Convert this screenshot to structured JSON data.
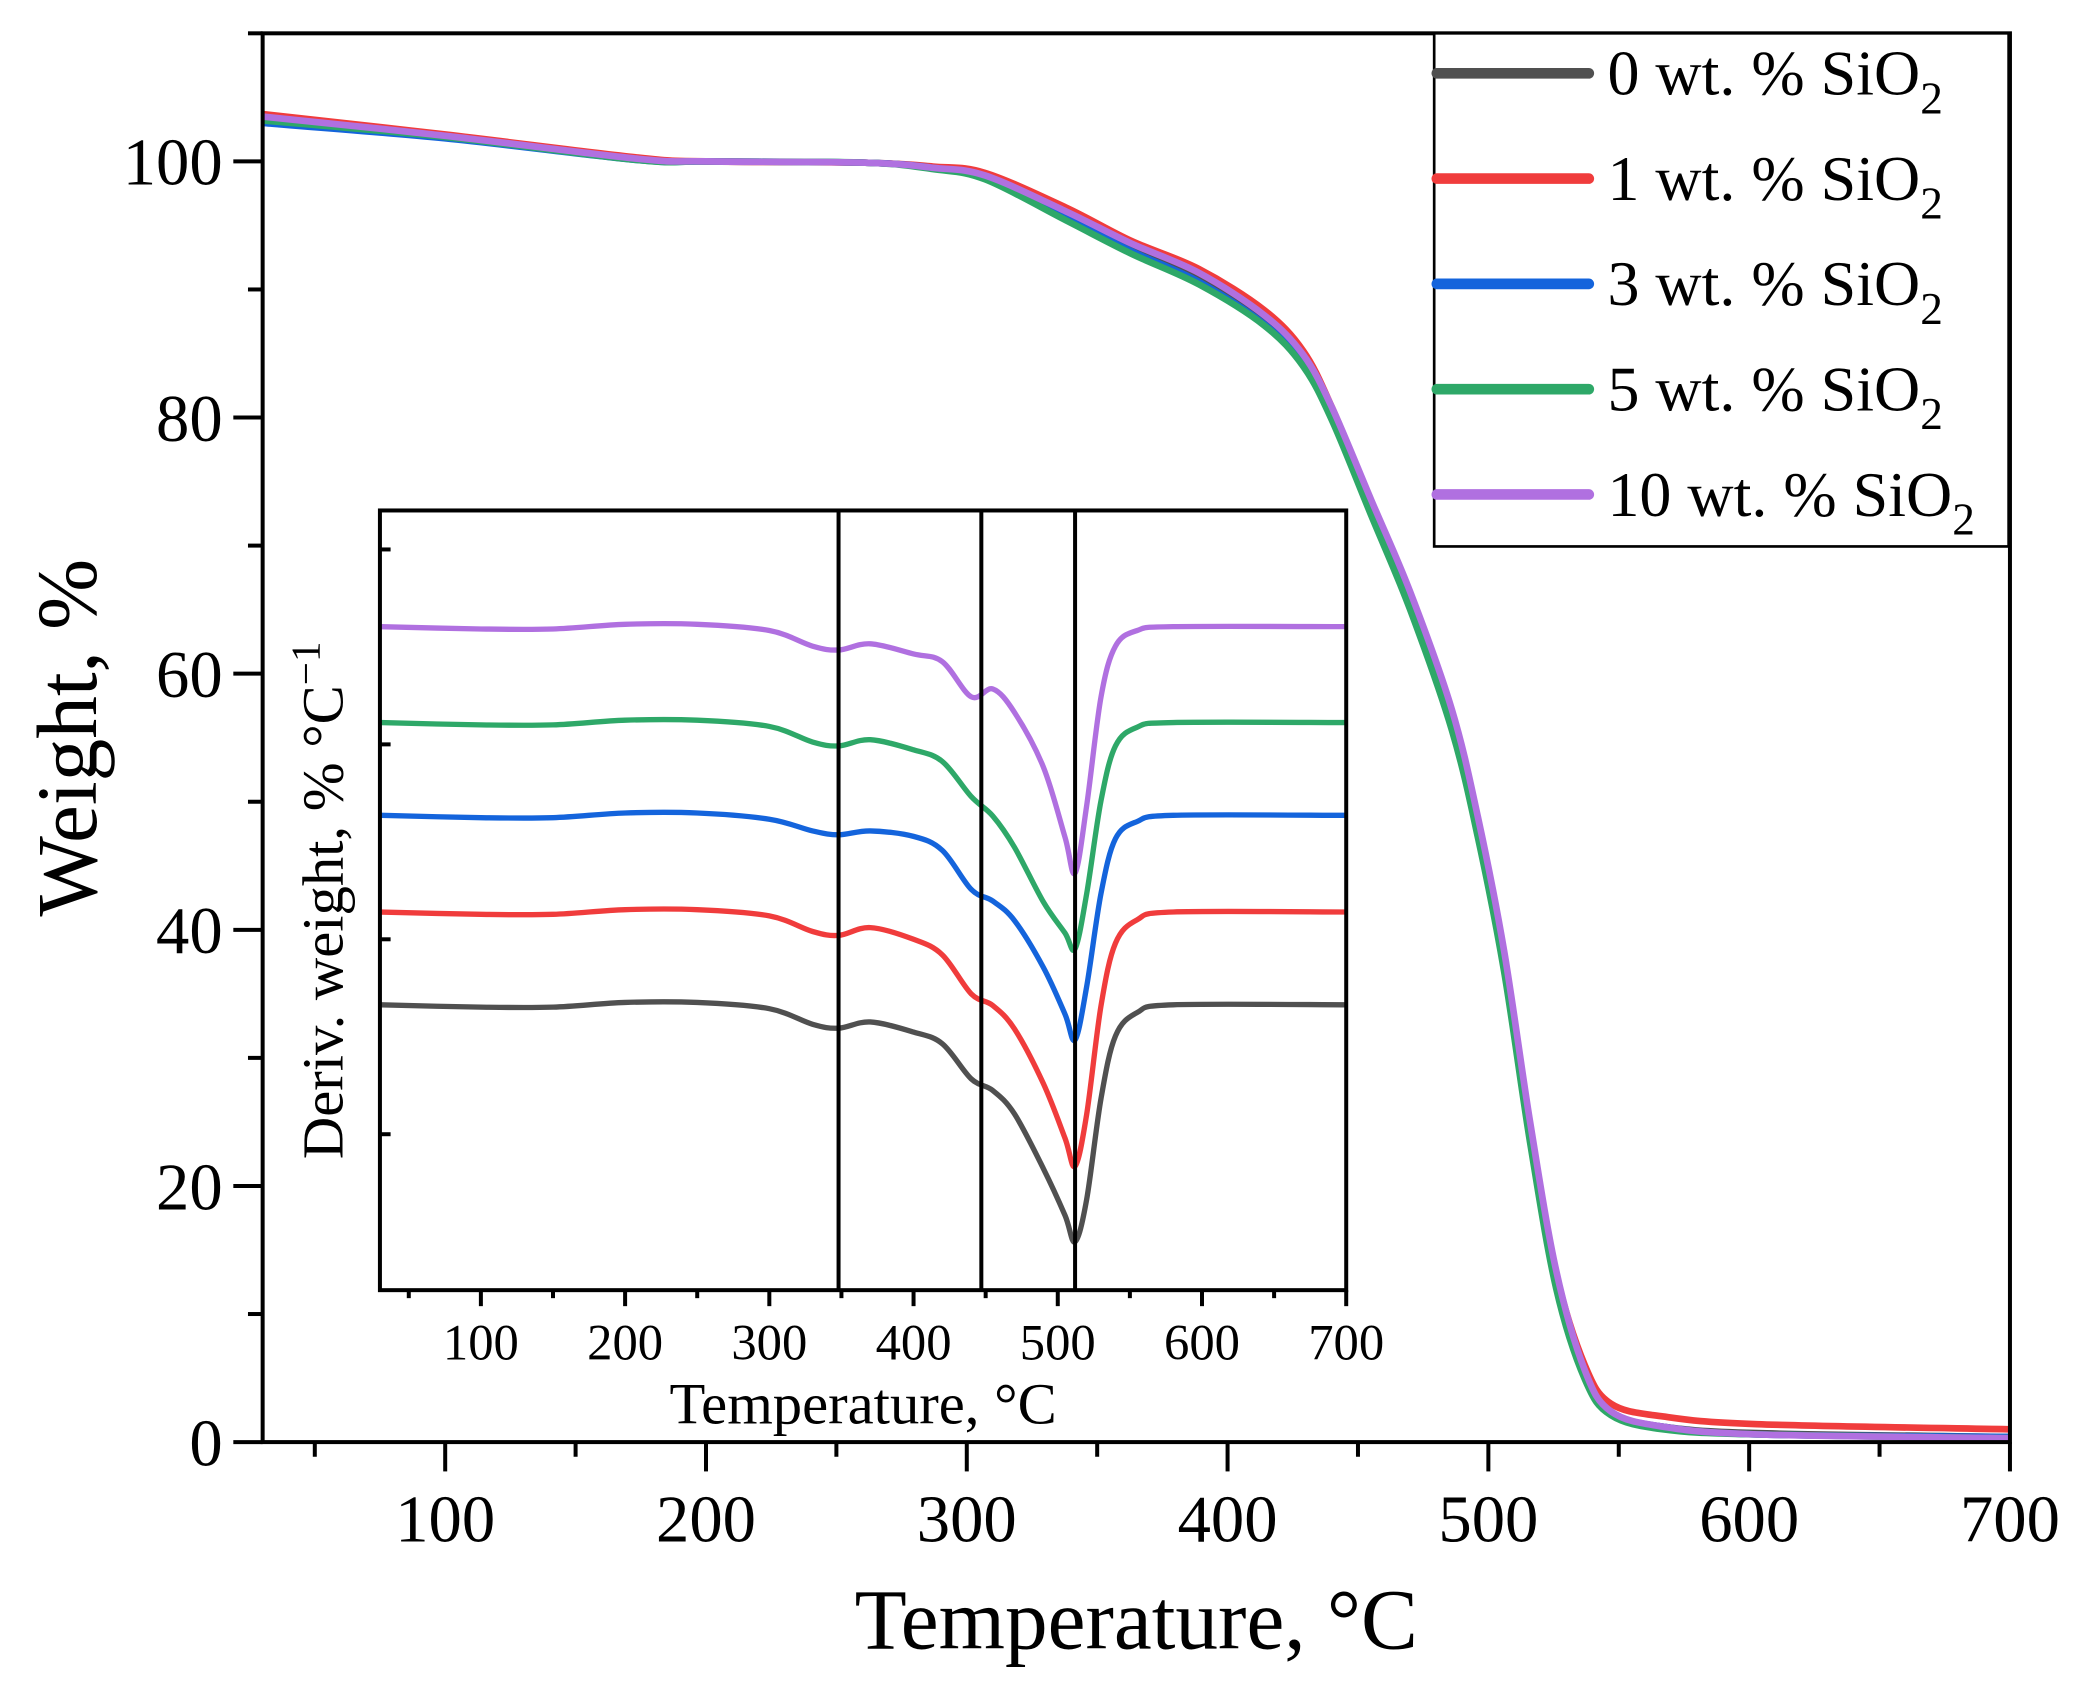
{
  "chart_data": [
    {
      "type": "line",
      "xlabel": "Temperature, °C",
      "ylabel": "Weight, %",
      "xlim": [
        30,
        700
      ],
      "ylim": [
        0,
        110
      ],
      "xticks": [
        100,
        200,
        300,
        400,
        500,
        600,
        700
      ],
      "yticks": [
        0,
        20,
        40,
        60,
        80,
        100
      ],
      "grid": false,
      "legend": "top-right",
      "x": [
        30,
        100,
        174,
        200,
        261,
        287,
        307,
        338,
        363,
        389,
        414,
        429,
        440,
        455,
        470,
        486,
        496,
        506,
        516,
        526,
        537,
        547,
        567,
        603,
        700
      ],
      "series": [
        {
          "name": "0 wt. % SiO",
          "sub": "2",
          "color": "#505050",
          "values": [
            103.3,
            101.9,
            100.2,
            100,
            99.9,
            99.5,
            98.8,
            95.8,
            93.2,
            90.8,
            87.5,
            84.4,
            80.2,
            72.8,
            65.4,
            56.0,
            47.6,
            37.2,
            23.8,
            12.4,
            5.2,
            2.3,
            1.2,
            0.7,
            0.4
          ]
        },
        {
          "name": "1 wt. % SiO",
          "sub": "2",
          "color": "#f03c3c",
          "values": [
            103.7,
            102.1,
            100.3,
            100,
            99.9,
            99.6,
            99.1,
            96.4,
            93.8,
            91.6,
            88.4,
            85.2,
            80.8,
            73.4,
            66.0,
            56.8,
            48.4,
            38.0,
            24.6,
            13.2,
            6.0,
            3.0,
            2.0,
            1.4,
            1.0
          ]
        },
        {
          "name": "3 wt. % SiO",
          "sub": "2",
          "color": "#1464dc",
          "values": [
            103.0,
            101.8,
            100.1,
            100,
            99.9,
            99.5,
            98.7,
            95.6,
            93.0,
            90.6,
            87.3,
            84.2,
            80.0,
            72.6,
            65.2,
            55.8,
            47.4,
            37.0,
            23.6,
            12.2,
            5.0,
            2.2,
            1.2,
            0.6,
            0.4
          ]
        },
        {
          "name": "5 wt. % SiO",
          "sub": "2",
          "color": "#2ea868",
          "values": [
            103.2,
            101.9,
            100.1,
            100,
            99.9,
            99.4,
            98.6,
            95.4,
            92.8,
            90.4,
            87.2,
            84.0,
            79.8,
            72.4,
            65.0,
            55.6,
            47.2,
            36.8,
            23.4,
            12.0,
            4.9,
            2.1,
            1.0,
            0.6,
            0.3
          ]
        },
        {
          "name": "10 wt. % SiO",
          "sub": "2",
          "color": "#b070e0",
          "values": [
            103.5,
            102.0,
            100.2,
            100,
            99.9,
            99.5,
            98.9,
            96.1,
            93.6,
            91.3,
            88.0,
            84.9,
            80.8,
            73.6,
            66.4,
            57.2,
            48.8,
            38.4,
            25.0,
            13.4,
            5.6,
            2.4,
            1.2,
            0.6,
            0.3
          ]
        }
      ]
    },
    {
      "type": "line",
      "inset": true,
      "xlabel": "Temperature, °C",
      "ylabel": "Deriv. weight, % °C",
      "ylabel_sup": "−1",
      "xlim": [
        30,
        700
      ],
      "ylim": [
        0,
        100
      ],
      "xticks": [
        100,
        200,
        300,
        400,
        500,
        600,
        700
      ],
      "yticks_labeled": false,
      "vertical_lines": [
        348,
        447,
        512
      ],
      "x": [
        30,
        100,
        150,
        200,
        250,
        300,
        330,
        348,
        370,
        400,
        420,
        440,
        455,
        470,
        490,
        505,
        512,
        520,
        530,
        540,
        555,
        580,
        700
      ],
      "series": [
        {
          "color": "#505050",
          "values": [
            36.6,
            36.3,
            36.3,
            36.9,
            36.9,
            36.1,
            34.1,
            33.6,
            34.4,
            33.1,
            31.6,
            27.1,
            25.6,
            22.6,
            15.6,
            9.6,
            6.2,
            11.6,
            24.6,
            32.6,
            35.6,
            36.6,
            36.6
          ]
        },
        {
          "color": "#f03c3c",
          "values": [
            48.5,
            48.2,
            48.2,
            48.8,
            48.8,
            48.0,
            46.0,
            45.5,
            46.5,
            45.0,
            43.0,
            38.0,
            36.5,
            33.5,
            26.5,
            19.5,
            15.9,
            22.5,
            36.5,
            44.5,
            47.5,
            48.5,
            48.5
          ]
        },
        {
          "color": "#1464dc",
          "values": [
            60.9,
            60.6,
            60.6,
            61.2,
            61.2,
            60.4,
            58.9,
            58.4,
            58.9,
            58.2,
            56.4,
            51.4,
            49.9,
            47.4,
            41.4,
            35.4,
            32.1,
            38.9,
            50.9,
            57.9,
            60.1,
            60.9,
            60.9
          ]
        },
        {
          "color": "#2ea868",
          "values": [
            72.8,
            72.5,
            72.5,
            73.1,
            73.1,
            72.3,
            70.3,
            69.8,
            70.6,
            69.3,
            67.8,
            63.3,
            60.8,
            56.8,
            49.8,
            45.8,
            43.8,
            50.8,
            62.8,
            69.8,
            72.2,
            72.8,
            72.8
          ]
        },
        {
          "color": "#b070e0",
          "values": [
            85.1,
            84.8,
            84.8,
            85.4,
            85.4,
            84.6,
            82.6,
            82.1,
            82.9,
            81.6,
            80.6,
            76.1,
            77.1,
            74.1,
            67.1,
            58.1,
            53.5,
            62.1,
            76.1,
            82.6,
            84.6,
            85.1,
            85.1
          ]
        }
      ]
    }
  ]
}
